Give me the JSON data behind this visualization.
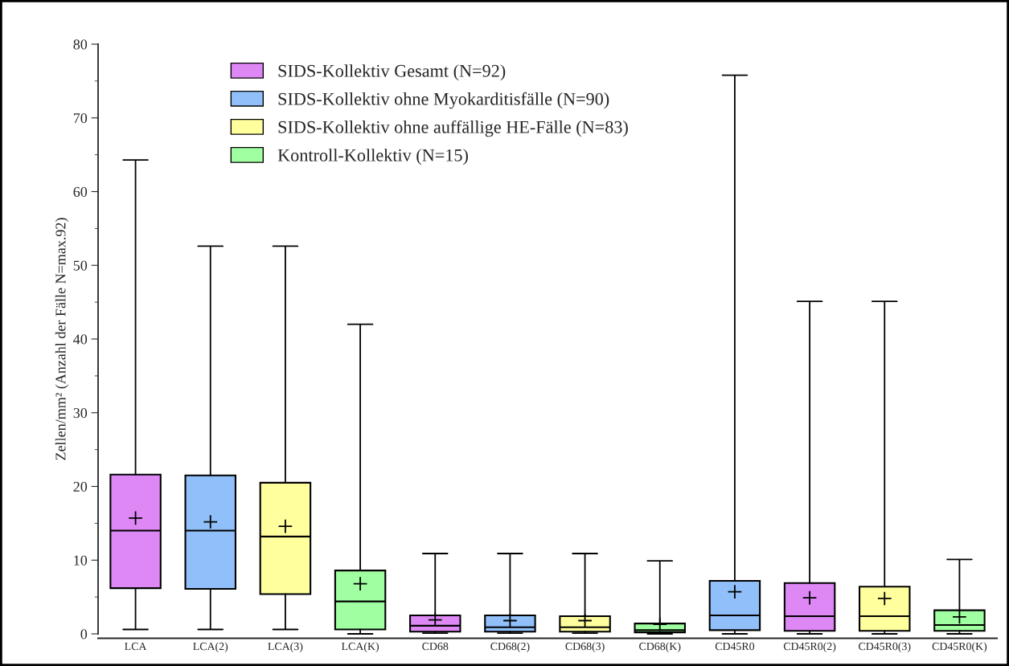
{
  "chart_data": {
    "type": "box",
    "ylabel": "Zellen/mm² (Anzahl der Fälle N=max.92)",
    "categories": [
      "LCA",
      "LCA(2)",
      "LCA(3)",
      "LCA(K)",
      "CD68",
      "CD68(2)",
      "CD68(3)",
      "CD68(K)",
      "CD45R0",
      "CD45R0(2)",
      "CD45R0(3)",
      "CD45R0(K)"
    ],
    "ylim": [
      0,
      80
    ],
    "yticks": [
      0,
      10,
      20,
      30,
      40,
      50,
      60,
      70,
      80
    ],
    "grid": false,
    "legend": "top left",
    "marker": "cross",
    "series": [
      {
        "name": "SIDS-Kollektiv Gesamt (N=92)",
        "color": "#dd88f5",
        "boxes": [
          {
            "low": 0.6,
            "q1": 6.2,
            "median": 14,
            "q3": 21.6,
            "high": 64.3,
            "mean": 15.7
          },
          null,
          null,
          null,
          {
            "low": 0.1,
            "q1": 0.3,
            "median": 1.1,
            "q3": 2.5,
            "high": 10.9,
            "mean": 1.9
          },
          null,
          null,
          null,
          null,
          {
            "low": 0,
            "q1": 0.4,
            "median": 2.4,
            "q3": 6.9,
            "high": 45.1,
            "mean": 4.9
          },
          null,
          null
        ]
      },
      {
        "name": "SIDS-Kollektiv ohne Myokarditisfälle (N=90)",
        "color": "#90bff9",
        "boxes": [
          null,
          {
            "low": 0.6,
            "q1": 6.1,
            "median": 14,
            "q3": 21.5,
            "high": 52.6,
            "mean": 15.2
          },
          null,
          null,
          null,
          {
            "low": 0.1,
            "q1": 0.3,
            "median": 0.9,
            "q3": 2.5,
            "high": 10.9,
            "mean": 1.8
          },
          null,
          null,
          {
            "low": 0,
            "q1": 0.5,
            "median": 2.5,
            "q3": 7.2,
            "high": 75.8,
            "mean": 5.7
          },
          null,
          null,
          null
        ]
      },
      {
        "name": "SIDS-Kollektiv ohne auffällige HE-Fälle (N=83)",
        "color": "#ffff9e",
        "boxes": [
          null,
          null,
          {
            "low": 0.6,
            "q1": 5.4,
            "median": 13.2,
            "q3": 20.5,
            "high": 52.6,
            "mean": 14.6
          },
          null,
          null,
          null,
          {
            "low": 0.1,
            "q1": 0.3,
            "median": 0.9,
            "q3": 2.4,
            "high": 10.9,
            "mean": 1.8
          },
          null,
          null,
          null,
          {
            "low": 0,
            "q1": 0.4,
            "median": 2.4,
            "q3": 6.4,
            "high": 45.1,
            "mean": 4.8
          },
          null
        ]
      },
      {
        "name": "Kontroll-Kollektiv (N=15)",
        "color": "#a0ffa0",
        "boxes": [
          null,
          null,
          null,
          {
            "low": 0,
            "q1": 0.6,
            "median": 4.4,
            "q3": 8.6,
            "high": 42,
            "mean": 6.8
          },
          null,
          null,
          null,
          {
            "low": 0,
            "q1": 0.2,
            "median": 0.5,
            "q3": 1.4,
            "high": 9.9,
            "mean": 1.3
          },
          null,
          null,
          null,
          {
            "low": 0,
            "q1": 0.4,
            "median": 1.2,
            "q3": 3.2,
            "high": 10.1,
            "mean": 2.3
          }
        ]
      }
    ]
  }
}
